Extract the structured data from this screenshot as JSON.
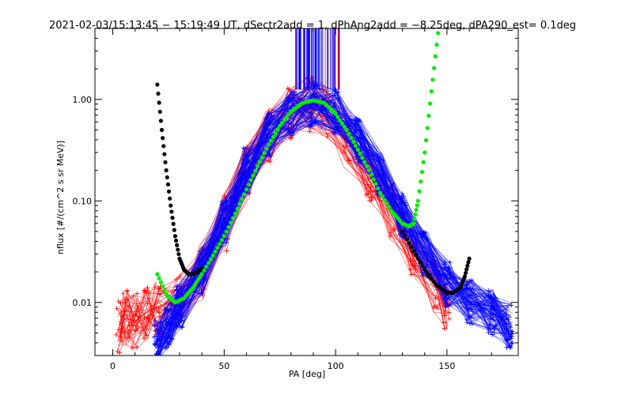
{
  "chart_data": {
    "type": "line",
    "title": "2021-02-03/15:13:45 − 15:19:49 UT, dSectr2add = 1, dPhAng2add = −8.25deg, dPA290_est=   0.1deg",
    "xlabel": "PA [deg]",
    "ylabel": "nflux [#/(cm^2 s sr MeV)]",
    "xlim": [
      -8,
      182
    ],
    "ylim": [
      0.003,
      5.0
    ],
    "yscale": "log",
    "x_ticks": [
      "0",
      "50",
      "100",
      "150"
    ],
    "x_tick_values": [
      0,
      50,
      100,
      150
    ],
    "y_ticks": [
      "1.00",
      "0.10",
      "0.01"
    ],
    "y_tick_values": [
      1.0,
      0.1,
      0.01
    ],
    "grid": false,
    "colors": {
      "red": "#ff0000",
      "blue": "#0000ff",
      "green": "#00ee00",
      "black": "#000000"
    },
    "series": [
      {
        "color": "red",
        "style": "line-plus",
        "x": [
          3,
          6,
          10,
          15,
          20,
          30,
          40,
          50,
          60,
          70,
          80,
          88,
          95,
          105,
          115,
          125,
          135,
          145,
          150
        ],
        "y": [
          0.006,
          0.007,
          0.0065,
          0.008,
          0.009,
          0.011,
          0.02,
          0.06,
          0.2,
          0.45,
          0.75,
          0.9,
          0.8,
          0.4,
          0.18,
          0.08,
          0.03,
          0.015,
          0.01
        ]
      },
      {
        "color": "blue",
        "style": "line-plus",
        "x": [
          20,
          25,
          30,
          40,
          50,
          60,
          70,
          80,
          90,
          100,
          110,
          120,
          130,
          140,
          150,
          160,
          170,
          178
        ],
        "y": [
          0.004,
          0.006,
          0.009,
          0.02,
          0.06,
          0.2,
          0.45,
          0.75,
          0.9,
          0.75,
          0.4,
          0.18,
          0.07,
          0.03,
          0.015,
          0.01,
          0.008,
          0.006
        ]
      },
      {
        "color": "green",
        "style": "dots",
        "x": [
          20,
          24,
          28,
          32,
          36,
          40,
          45,
          50,
          55,
          60,
          65,
          70,
          75,
          80,
          85,
          90,
          95,
          100,
          105,
          110,
          115,
          120,
          125,
          130,
          133,
          135,
          137,
          140,
          143,
          146
        ],
        "y": [
          0.019,
          0.012,
          0.01,
          0.011,
          0.014,
          0.019,
          0.029,
          0.045,
          0.075,
          0.13,
          0.22,
          0.36,
          0.55,
          0.76,
          0.92,
          0.98,
          0.92,
          0.72,
          0.5,
          0.32,
          0.2,
          0.12,
          0.08,
          0.06,
          0.056,
          0.06,
          0.1,
          0.3,
          1.2,
          4.5
        ]
      },
      {
        "color": "black",
        "style": "dots",
        "x": [
          20,
          22,
          24,
          26,
          28,
          30,
          32,
          34,
          36,
          38,
          40,
          130,
          135,
          140,
          145,
          150,
          153,
          156,
          158,
          160
        ],
        "y": [
          1.4,
          0.5,
          0.2,
          0.09,
          0.045,
          0.027,
          0.021,
          0.019,
          0.019,
          0.02,
          0.022,
          0.05,
          0.032,
          0.021,
          0.015,
          0.0125,
          0.0125,
          0.014,
          0.018,
          0.027
        ]
      }
    ]
  }
}
